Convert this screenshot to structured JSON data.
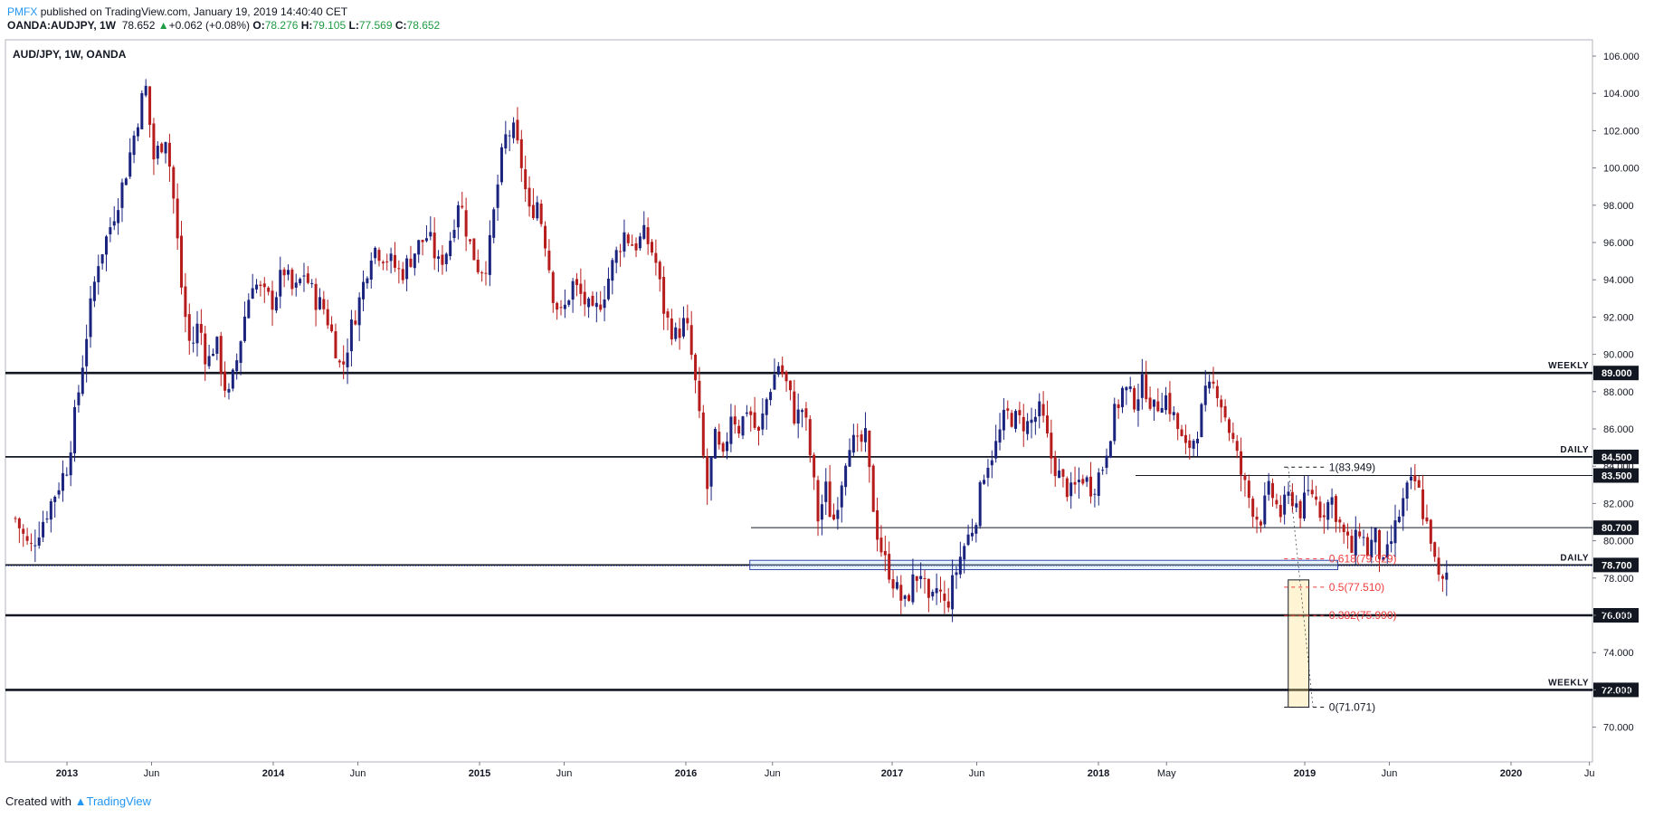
{
  "header": {
    "publisher": "PMFX",
    "published_text": "published on TradingView.com, January 19, 2019 14:40:40 CET",
    "symbol": "OANDA:AUDJPY, 1W",
    "last": "78.652",
    "change": "+0.062 (+0.08%)",
    "o_label": "O:",
    "o_value": "78.276",
    "h_label": "H:",
    "h_value": "79.105",
    "l_label": "L:",
    "l_value": "77.569",
    "c_label": "C:",
    "c_value": "78.652"
  },
  "footer": {
    "created_with": "Created with",
    "brand": "TradingView"
  },
  "colors": {
    "up_candle": "#1a237e",
    "down_candle": "#b71c1c",
    "fib_red": "#ef3b3b",
    "accent_blue": "#2196f3"
  },
  "chart_data": {
    "type": "candlestick",
    "title": "AUD/JPY, 1W, OANDA",
    "y_axis": {
      "position": "right",
      "ylim": [
        69,
        106.6
      ],
      "ticks": [
        "70.000",
        "72.000",
        "74.000",
        "76.000",
        "78.000",
        "80.000",
        "82.000",
        "84.000",
        "86.000",
        "88.000",
        "90.000",
        "92.000",
        "94.000",
        "96.000",
        "98.000",
        "100.000",
        "102.000",
        "104.000",
        "106.000"
      ]
    },
    "x_axis": {
      "ticks": [
        "2013",
        "Jun",
        "2014",
        "Jun",
        "2015",
        "Jun",
        "2016",
        "Jun",
        "2017",
        "Jun",
        "2018",
        "May",
        "2019",
        "Jun",
        "2020",
        "Ju"
      ]
    },
    "horizontal_levels": [
      {
        "price": 89.0,
        "label": "89.000",
        "tag": "WEEKLY",
        "weight": "thick"
      },
      {
        "price": 84.5,
        "label": "84.500",
        "tag": "DAILY",
        "weight": "medium"
      },
      {
        "price": 83.5,
        "label": "83.500",
        "tag": "",
        "weight": "thin"
      },
      {
        "price": 80.7,
        "label": "80.700",
        "tag": "",
        "weight": "thin"
      },
      {
        "price": 78.7,
        "label": "78.700",
        "tag": "DAILY",
        "weight": "medium"
      },
      {
        "price": 76.0,
        "label": "76.000",
        "tag": "",
        "weight": "thick"
      },
      {
        "price": 72.0,
        "label": "72.000",
        "tag": "WEEKLY",
        "weight": "thick"
      }
    ],
    "current_price": 78.652,
    "fibonacci": [
      {
        "ratio": "1",
        "label": "1(83.949)",
        "price": 83.949
      },
      {
        "ratio": "0.618",
        "label": "0.618(79.029)",
        "price": 79.029
      },
      {
        "ratio": "0.5",
        "label": "0.5(77.510)",
        "price": 77.51
      },
      {
        "ratio": "0.382",
        "label": "0.382(75.990)",
        "price": 75.99
      },
      {
        "ratio": "0",
        "label": "0(71.071)",
        "price": 71.071
      }
    ],
    "zone": {
      "price_high": 78.95,
      "price_low": 78.45
    },
    "path": [
      [
        2012.75,
        81.2
      ],
      [
        2012.82,
        79.5
      ],
      [
        2012.92,
        82.0
      ],
      [
        2013.0,
        84.0
      ],
      [
        2013.05,
        87.5
      ],
      [
        2013.1,
        91.5
      ],
      [
        2013.15,
        95.0
      ],
      [
        2013.2,
        96.5
      ],
      [
        2013.28,
        99.5
      ],
      [
        2013.35,
        103.0
      ],
      [
        2013.38,
        104.5
      ],
      [
        2013.42,
        100.5
      ],
      [
        2013.48,
        101.8
      ],
      [
        2013.52,
        98.0
      ],
      [
        2013.56,
        93.0
      ],
      [
        2013.6,
        90.2
      ],
      [
        2013.64,
        91.8
      ],
      [
        2013.68,
        89.4
      ],
      [
        2013.72,
        90.8
      ],
      [
        2013.78,
        87.5
      ],
      [
        2013.82,
        89.5
      ],
      [
        2013.86,
        92.0
      ],
      [
        2013.9,
        94.0
      ],
      [
        2013.95,
        93.2
      ],
      [
        2014.0,
        92.8
      ],
      [
        2014.05,
        94.6
      ],
      [
        2014.1,
        93.2
      ],
      [
        2014.15,
        94.4
      ],
      [
        2014.2,
        93.0
      ],
      [
        2014.25,
        92.4
      ],
      [
        2014.3,
        90.5
      ],
      [
        2014.33,
        89.0
      ],
      [
        2014.38,
        91.5
      ],
      [
        2014.42,
        93.0
      ],
      [
        2014.48,
        95.8
      ],
      [
        2014.55,
        95.2
      ],
      [
        2014.62,
        94.3
      ],
      [
        2014.7,
        95.8
      ],
      [
        2014.75,
        96.4
      ],
      [
        2014.8,
        94.8
      ],
      [
        2014.85,
        95.8
      ],
      [
        2014.9,
        98.5
      ],
      [
        2014.95,
        96.0
      ],
      [
        2015.0,
        94.5
      ],
      [
        2015.04,
        95.0
      ],
      [
        2015.08,
        98.5
      ],
      [
        2015.12,
        101.5
      ],
      [
        2015.16,
        102.1
      ],
      [
        2015.2,
        100.4
      ],
      [
        2015.24,
        97.5
      ],
      [
        2015.28,
        98.2
      ],
      [
        2015.32,
        96.0
      ],
      [
        2015.36,
        93.0
      ],
      [
        2015.4,
        92.0
      ],
      [
        2015.45,
        93.8
      ],
      [
        2015.5,
        93.0
      ],
      [
        2015.55,
        92.0
      ],
      [
        2015.6,
        93.2
      ],
      [
        2015.65,
        95.0
      ],
      [
        2015.7,
        96.5
      ],
      [
        2015.75,
        95.8
      ],
      [
        2015.8,
        96.4
      ],
      [
        2015.85,
        95.2
      ],
      [
        2015.9,
        92.0
      ],
      [
        2015.95,
        91.0
      ],
      [
        2016.0,
        91.8
      ],
      [
        2016.04,
        89.0
      ],
      [
        2016.08,
        85.0
      ],
      [
        2016.1,
        82.5
      ],
      [
        2016.14,
        85.5
      ],
      [
        2016.18,
        84.2
      ],
      [
        2016.22,
        87.0
      ],
      [
        2016.26,
        86.0
      ],
      [
        2016.3,
        87.3
      ],
      [
        2016.35,
        85.5
      ],
      [
        2016.4,
        88.0
      ],
      [
        2016.45,
        89.5
      ],
      [
        2016.5,
        88.0
      ],
      [
        2016.53,
        86.5
      ],
      [
        2016.57,
        87.2
      ],
      [
        2016.61,
        84.0
      ],
      [
        2016.64,
        81.2
      ],
      [
        2016.68,
        82.8
      ],
      [
        2016.71,
        80.8
      ],
      [
        2016.75,
        83.0
      ],
      [
        2016.79,
        85.5
      ],
      [
        2016.83,
        85.0
      ],
      [
        2016.87,
        85.5
      ],
      [
        2016.9,
        82.5
      ],
      [
        2016.93,
        80.3
      ],
      [
        2016.96,
        79.0
      ],
      [
        2016.99,
        78.3
      ],
      [
        2017.02,
        77.4
      ],
      [
        2017.06,
        76.5
      ],
      [
        2017.1,
        77.8
      ],
      [
        2017.14,
        78.4
      ],
      [
        2017.18,
        76.2
      ],
      [
        2017.22,
        77.6
      ],
      [
        2017.26,
        76.3
      ],
      [
        2017.3,
        78.0
      ],
      [
        2017.34,
        79.5
      ],
      [
        2017.4,
        81.0
      ],
      [
        2017.45,
        84.0
      ],
      [
        2017.5,
        85.0
      ],
      [
        2017.55,
        86.8
      ],
      [
        2017.6,
        86.5
      ],
      [
        2017.66,
        86.2
      ],
      [
        2017.72,
        87.0
      ],
      [
        2017.77,
        84.5
      ],
      [
        2017.82,
        83.2
      ],
      [
        2017.87,
        82.5
      ],
      [
        2017.92,
        83.5
      ],
      [
        2017.97,
        82.8
      ],
      [
        2018.02,
        84.0
      ],
      [
        2018.07,
        86.5
      ],
      [
        2018.12,
        88.2
      ],
      [
        2018.17,
        87.5
      ],
      [
        2018.22,
        88.5
      ],
      [
        2018.27,
        87.0
      ],
      [
        2018.32,
        87.9
      ],
      [
        2018.37,
        86.5
      ],
      [
        2018.42,
        84.8
      ],
      [
        2018.47,
        85.6
      ],
      [
        2018.52,
        87.8
      ],
      [
        2018.57,
        88.4
      ],
      [
        2018.62,
        86.5
      ],
      [
        2018.66,
        85.0
      ],
      [
        2018.7,
        83.2
      ],
      [
        2018.74,
        82.0
      ],
      [
        2018.78,
        81.0
      ],
      [
        2018.83,
        82.8
      ],
      [
        2018.88,
        81.4
      ],
      [
        2018.93,
        82.5
      ],
      [
        2018.98,
        81.6
      ],
      [
        2019.03,
        82.8
      ],
      [
        2019.08,
        81.5
      ],
      [
        2019.13,
        82.3
      ],
      [
        2019.18,
        80.5
      ],
      [
        2019.23,
        79.4
      ],
      [
        2019.27,
        80.8
      ],
      [
        2019.3,
        79.3
      ],
      [
        2019.34,
        80.3
      ],
      [
        2019.38,
        78.5
      ],
      [
        2019.42,
        80.0
      ],
      [
        2019.46,
        81.5
      ],
      [
        2019.5,
        82.8
      ],
      [
        2019.54,
        83.2
      ],
      [
        2019.58,
        81.2
      ],
      [
        2019.61,
        80.3
      ],
      [
        2019.64,
        78.0
      ],
      [
        2019.67,
        77.6
      ],
      [
        2019.7,
        78.65
      ]
    ]
  }
}
